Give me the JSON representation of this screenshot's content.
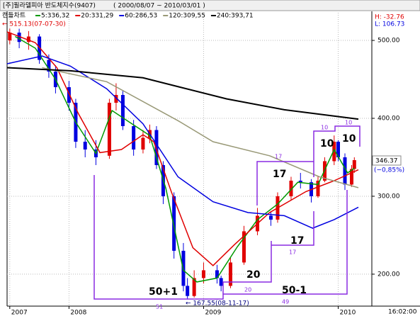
{
  "chart_data": {
    "type": "candlestick",
    "title": "[주]필라델피아 반도체지수(9407)",
    "subtitle": "( 2000/08/07 ~ 2010/03/01 )",
    "chart_label": "캔들차트",
    "high_label": "H: -32.76",
    "low_label": "L: 106.73",
    "max_label": "← 515.13(07-07-30)",
    "min_label": "← 167.55(08-11-17)",
    "change_label": "(−0,85%)",
    "time_label": "16:02:00",
    "annotations": [
      "50+1",
      "50-1",
      "20",
      "17",
      "17",
      "10",
      "10",
      "51",
      "20",
      "49",
      "17",
      "17",
      "10",
      "10"
    ],
    "up_color": "#e00000",
    "down_color": "#0000e0",
    "x": [
      2007.56,
      2007.63,
      2007.7,
      2007.78,
      2007.85,
      2007.9,
      2008.0,
      2008.05,
      2008.12,
      2008.2,
      2008.3,
      2008.35,
      2008.4,
      2008.48,
      2008.55,
      2008.6,
      2008.65,
      2008.7,
      2008.78,
      2008.85,
      2008.88,
      2008.93,
      2009.0,
      2009.1,
      2009.13,
      2009.2,
      2009.3,
      2009.4,
      2009.5,
      2009.55,
      2009.65,
      2009.72,
      2009.8,
      2009.85,
      2009.9,
      2009.97,
      2010.0,
      2010.05,
      2010.1,
      2010.12
    ],
    "open": [
      500,
      510,
      498,
      505,
      475,
      460,
      440,
      420,
      370,
      360,
      352,
      420,
      430,
      390,
      360,
      375,
      385,
      340,
      300,
      230,
      185,
      172,
      195,
      205,
      195,
      185,
      215,
      255,
      275,
      270,
      300,
      320,
      318,
      300,
      320,
      345,
      370,
      350,
      315,
      335
    ],
    "high": [
      515.13,
      515,
      512,
      508,
      482,
      468,
      448,
      425,
      385,
      372,
      425,
      445,
      435,
      398,
      385,
      392,
      390,
      345,
      305,
      240,
      195,
      205,
      215,
      212,
      198,
      222,
      262,
      285,
      280,
      305,
      325,
      330,
      322,
      325,
      350,
      378,
      372,
      355,
      340,
      350
    ],
    "low": [
      495,
      490,
      488,
      470,
      452,
      432,
      410,
      362,
      350,
      340,
      348,
      410,
      385,
      352,
      355,
      368,
      335,
      290,
      220,
      178,
      167.55,
      170,
      188,
      188,
      178,
      182,
      212,
      250,
      262,
      266,
      295,
      310,
      292,
      298,
      318,
      340,
      345,
      308,
      312,
      330
    ],
    "close": [
      510,
      498,
      505,
      475,
      460,
      440,
      420,
      370,
      360,
      350,
      420,
      430,
      390,
      360,
      375,
      385,
      340,
      300,
      230,
      185,
      172,
      195,
      205,
      195,
      185,
      215,
      255,
      275,
      270,
      300,
      320,
      318,
      300,
      320,
      345,
      370,
      350,
      315,
      335,
      346.37
    ],
    "series": [
      {
        "name": "5:336,32",
        "color": "#009900",
        "x": [
          2007.6,
          2007.75,
          2007.9,
          2008.05,
          2008.2,
          2008.32,
          2008.45,
          2008.6,
          2008.72,
          2008.85,
          2008.95,
          2009.1,
          2009.25,
          2009.4,
          2009.55,
          2009.7,
          2009.85,
          2009.97,
          2010.07,
          2010.12
        ],
        "values": [
          505,
          490,
          450,
          395,
          355,
          410,
          395,
          378,
          310,
          205,
          190,
          195,
          235,
          270,
          290,
          318,
          315,
          360,
          330,
          336
        ]
      },
      {
        "name": "20:331,29",
        "color": "#e00000",
        "x": [
          2007.54,
          2007.75,
          2007.91,
          2008.07,
          2008.23,
          2008.39,
          2008.55,
          2008.63,
          2008.76,
          2008.92,
          2009.07,
          2009.23,
          2009.49,
          2009.76,
          2009.97,
          2010.15
        ],
        "values": [
          511,
          497,
          465,
          406,
          356,
          360,
          379,
          370,
          306,
          234,
          211,
          238,
          279,
          306,
          320,
          334
        ]
      },
      {
        "name": "60:286,53",
        "color": "#0000e0",
        "x": [
          2007.54,
          2007.8,
          2008.01,
          2008.28,
          2008.55,
          2008.81,
          2009.07,
          2009.33,
          2009.6,
          2009.81,
          2009.97,
          2010.15
        ],
        "values": [
          470,
          480,
          467,
          438,
          393,
          325,
          293,
          279,
          275,
          259,
          270,
          286
        ]
      },
      {
        "name": "120:309,55",
        "color": "#999977",
        "x": [
          2007.8,
          2008.28,
          2008.81,
          2009.07,
          2009.49,
          2009.86,
          2010.15
        ],
        "values": [
          465,
          447,
          397,
          370,
          352,
          325,
          311
        ]
      },
      {
        "name": "240:393,71",
        "color": "#000000",
        "x": [
          2007.54,
          2008.01,
          2008.55,
          2009.17,
          2009.6,
          2010.15
        ],
        "values": [
          465,
          461,
          452,
          425,
          411,
          399
        ]
      }
    ],
    "xlim": [
      2007.54,
      2010.25
    ],
    "xticks": [
      {
        "value": 2007.56,
        "label": "2007"
      },
      {
        "value": 2008,
        "label": "2008"
      },
      {
        "value": 2009,
        "label": "2009"
      },
      {
        "value": 2010,
        "label": "2010"
      }
    ],
    "ylim": [
      159,
      535.5
    ],
    "yticks": [
      {
        "value": 200,
        "label": "200.00"
      },
      {
        "value": 300,
        "label": "300.00"
      },
      {
        "value": 400,
        "label": "400.00"
      },
      {
        "value": 500,
        "label": "500.00"
      }
    ],
    "grid": true
  }
}
